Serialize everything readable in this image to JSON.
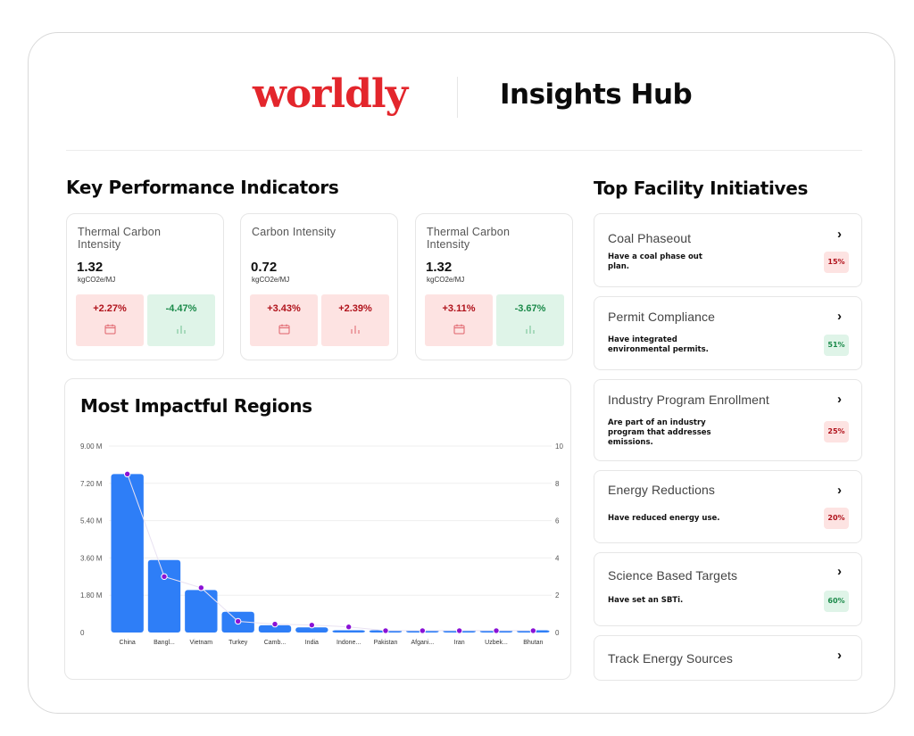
{
  "header": {
    "logo": "worldly",
    "title": "Insights Hub"
  },
  "kpi": {
    "title": "Key Performance Indicators",
    "cards": [
      {
        "name": "Thermal Carbon Intensity",
        "value": "1.32",
        "unit": "kgCO2e/MJ",
        "change_period": "+2.27%",
        "change_trend": "-4.47%"
      },
      {
        "name": "Carbon Intensity",
        "value": "0.72",
        "unit": "kgCO2e/MJ",
        "change_period": "+3.43%",
        "change_trend": "+2.39%"
      },
      {
        "name": "Thermal Carbon Intensity",
        "value": "1.32",
        "unit": "kgCO2e/MJ",
        "change_period": "+3.11%",
        "change_trend": "-3.67%"
      }
    ]
  },
  "regions": {
    "title": "Most Impactful Regions"
  },
  "chart_data": {
    "type": "bar",
    "categories": [
      "China",
      "Bangl...",
      "Vietnam",
      "Turkey",
      "Camb...",
      "India",
      "Indone...",
      "Pakistan",
      "Afgani...",
      "Iran",
      "Uzbek...",
      "Bhutan"
    ],
    "series": [
      {
        "type": "bar",
        "axis": "left",
        "values": [
          7.65,
          3.5,
          2.05,
          1.0,
          0.35,
          0.25,
          0.1,
          0.05,
          0.05,
          0.05,
          0.05,
          0.05
        ]
      },
      {
        "type": "line",
        "axis": "right",
        "values": [
          8.5,
          3.0,
          2.4,
          0.6,
          0.45,
          0.4,
          0.3,
          0.1,
          0.1,
          0.1,
          0.1,
          0.1
        ]
      }
    ],
    "left_axis": {
      "ticks": [
        "0",
        "1.80 M",
        "3.60 M",
        "5.40 M",
        "7.20 M",
        "9.00 M"
      ],
      "range": [
        0,
        9
      ]
    },
    "right_axis": {
      "ticks": [
        "0",
        "2",
        "4",
        "6",
        "8",
        "10"
      ],
      "range": [
        0,
        10
      ]
    },
    "bar_color": "#2e7ef7",
    "point_color": "#8a12d6"
  },
  "initiatives": {
    "title": "Top Facility Initiatives",
    "items": [
      {
        "title": "Coal Phaseout",
        "desc": "Have a coal phase out plan.",
        "pct": "15%",
        "tone": "red"
      },
      {
        "title": "Permit Compliance",
        "desc": "Have integrated environmental permits.",
        "pct": "51%",
        "tone": "green"
      },
      {
        "title": "Industry Program Enrollment",
        "desc": "Are part of an industry program that addresses emissions.",
        "pct": "25%",
        "tone": "red"
      },
      {
        "title": "Energy Reductions",
        "desc": "Have reduced energy use.",
        "pct": "20%",
        "tone": "red"
      },
      {
        "title": "Science Based Targets",
        "desc": "Have set an SBTi.",
        "pct": "60%",
        "tone": "green"
      },
      {
        "title": "Track Energy Sources",
        "desc": "",
        "pct": "",
        "tone": ""
      }
    ]
  },
  "icons": {
    "chevron": "chevron-right-icon",
    "calendar": "calendar-icon",
    "bars": "bar-chart-icon"
  }
}
